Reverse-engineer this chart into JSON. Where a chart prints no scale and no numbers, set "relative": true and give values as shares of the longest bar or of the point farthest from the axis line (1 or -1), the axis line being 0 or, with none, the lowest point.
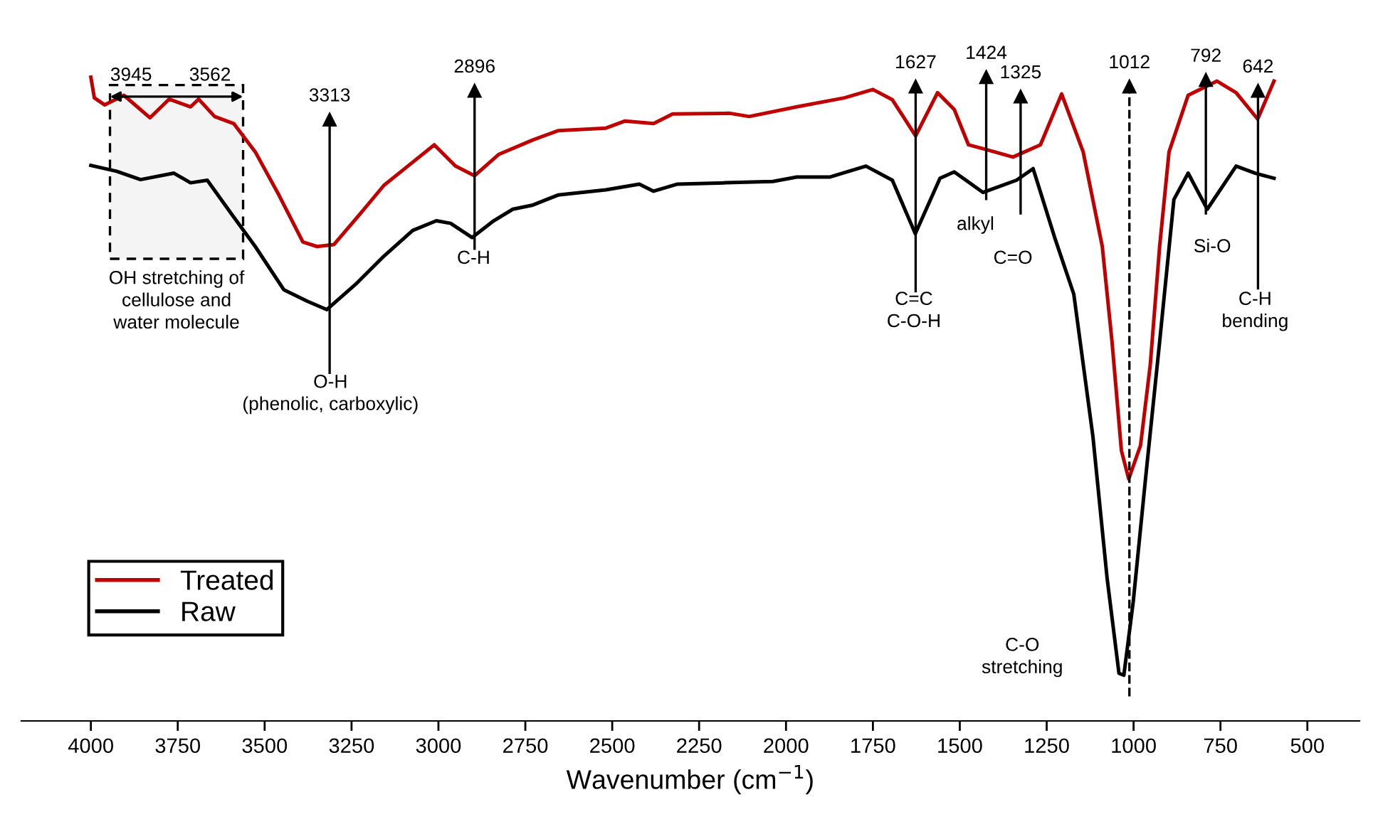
{
  "chart_data": {
    "type": "line",
    "relative": true,
    "xlabel": "Wavenumber (cm$^{−1}$)",
    "xlim": [
      4200,
      350
    ],
    "xticks": [
      4000,
      3750,
      3500,
      3250,
      3000,
      2750,
      2500,
      2250,
      2000,
      1750,
      1500,
      1250,
      1000,
      750,
      500
    ],
    "legend": "bottom left",
    "grid": false,
    "marker": "none",
    "line_style": "solid",
    "series": [
      {
        "name": "Treated",
        "color": "#c00000",
        "x": [
          4000,
          3990,
          3960,
          3905,
          3830,
          3775,
          3713,
          3690,
          3644,
          3589,
          3527,
          3459,
          3390,
          3349,
          3301,
          3225,
          3157,
          3088,
          3012,
          2951,
          2896,
          2827,
          2731,
          2656,
          2518,
          2463,
          2381,
          2326,
          2161,
          2106,
          1969,
          1832,
          1750,
          1694,
          1627,
          1564,
          1516,
          1475,
          1420,
          1347,
          1268,
          1207,
          1145,
          1090,
          1062,
          1035,
          1014,
          980,
          952,
          925,
          898,
          843,
          760,
          705,
          643,
          596
        ],
        "values": [
          1.0,
          0.968,
          0.957,
          0.972,
          0.937,
          0.966,
          0.954,
          0.966,
          0.939,
          0.928,
          0.884,
          0.817,
          0.744,
          0.737,
          0.74,
          0.788,
          0.832,
          0.862,
          0.895,
          0.862,
          0.847,
          0.88,
          0.902,
          0.917,
          0.921,
          0.932,
          0.928,
          0.943,
          0.944,
          0.939,
          0.954,
          0.968,
          0.981,
          0.965,
          0.909,
          0.976,
          0.95,
          0.895,
          0.887,
          0.876,
          0.895,
          0.974,
          0.884,
          0.737,
          0.589,
          0.42,
          0.376,
          0.428,
          0.553,
          0.737,
          0.884,
          0.972,
          0.994,
          0.976,
          0.935,
          0.994
        ]
      },
      {
        "name": "Raw",
        "color": "#000000",
        "x": [
          4000,
          3926,
          3857,
          3761,
          3713,
          3665,
          3596,
          3527,
          3445,
          3377,
          3321,
          3239,
          3157,
          3074,
          3006,
          2965,
          2903,
          2841,
          2786,
          2731,
          2656,
          2518,
          2422,
          2381,
          2312,
          2175,
          2038,
          1969,
          1873,
          1770,
          1694,
          1628,
          1557,
          1516,
          1433,
          1337,
          1289,
          1227,
          1172,
          1117,
          1076,
          1042,
          1028,
          1001,
          967,
          925,
          884,
          843,
          788,
          705,
          650,
          596
        ],
        "values": [
          0.863,
          0.854,
          0.841,
          0.851,
          0.836,
          0.84,
          0.788,
          0.737,
          0.67,
          0.652,
          0.639,
          0.678,
          0.722,
          0.762,
          0.777,
          0.773,
          0.751,
          0.777,
          0.795,
          0.801,
          0.817,
          0.825,
          0.834,
          0.823,
          0.834,
          0.836,
          0.838,
          0.845,
          0.845,
          0.862,
          0.84,
          0.757,
          0.843,
          0.853,
          0.821,
          0.84,
          0.858,
          0.751,
          0.663,
          0.442,
          0.221,
          0.074,
          0.071,
          0.185,
          0.369,
          0.589,
          0.81,
          0.851,
          0.795,
          0.862,
          0.851,
          0.843
        ]
      }
    ],
    "bands": [
      {
        "axis": "x",
        "from": 3945,
        "to": 3562,
        "color": "#f4f4f4",
        "label": "OH stretching of\ncellulose and\nwater molecule"
      }
    ],
    "ref_lines": [
      {
        "axis": "x",
        "value": 3313,
        "label": "3313",
        "line_style": "solid"
      },
      {
        "axis": "x",
        "value": 2896,
        "label": "2896",
        "line_style": "solid"
      },
      {
        "axis": "x",
        "value": 1627,
        "label": "1627",
        "line_style": "solid"
      },
      {
        "axis": "x",
        "value": 1424,
        "label": "1424",
        "line_style": "solid"
      },
      {
        "axis": "x",
        "value": 1325,
        "label": "1325",
        "line_style": "solid"
      },
      {
        "axis": "x",
        "value": 1012,
        "label": "1012",
        "line_style": "dashed"
      },
      {
        "axis": "x",
        "value": 792,
        "label": "792",
        "line_style": "solid"
      },
      {
        "axis": "x",
        "value": 642,
        "label": "642",
        "line_style": "solid"
      }
    ],
    "annotations": [
      "3945",
      "3562",
      "O-H\n(phenolic, carboxylic)",
      "C-H",
      "C=C\nC-O-H",
      "alkyl",
      "C=O",
      "Si-O",
      "C-H\nbending",
      "C-O\nstretching"
    ]
  }
}
